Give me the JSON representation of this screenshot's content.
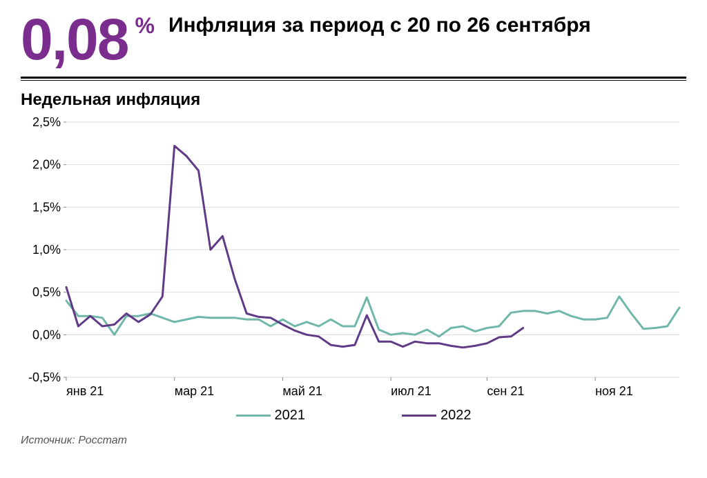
{
  "header": {
    "value": "0,08",
    "unit": "%",
    "subtitle": "Инфляция за период с 20 по 26 сентября",
    "value_color": "#7b2d8e"
  },
  "chart": {
    "title": "Недельная инфляция",
    "type": "line",
    "background_color": "#ffffff",
    "grid_color": "#d9d9d9",
    "axis_color": "#000000",
    "tick_fontsize": 18,
    "title_fontsize": 24,
    "ylim": [
      -0.5,
      2.5
    ],
    "ytick_step": 0.5,
    "y_ticks": [
      {
        "v": -0.5,
        "label": "-0,5%"
      },
      {
        "v": 0.0,
        "label": "0,0%"
      },
      {
        "v": 0.5,
        "label": "0,5%"
      },
      {
        "v": 1.0,
        "label": "1,0%"
      },
      {
        "v": 1.5,
        "label": "1,5%"
      },
      {
        "v": 2.0,
        "label": "2,0%"
      },
      {
        "v": 2.5,
        "label": "2,5%"
      }
    ],
    "x_ticks": [
      {
        "x": 0,
        "label": "янв 21"
      },
      {
        "x": 9,
        "label": "мар 21"
      },
      {
        "x": 18,
        "label": "май 21"
      },
      {
        "x": 27,
        "label": "июл 21"
      },
      {
        "x": 35,
        "label": "сен 21"
      },
      {
        "x": 44,
        "label": "ноя 21"
      }
    ],
    "x_count": 52,
    "series": [
      {
        "name": "2021",
        "color": "#6fb7a8",
        "width": 3,
        "data": [
          0.4,
          0.22,
          0.22,
          0.2,
          0.0,
          0.22,
          0.22,
          0.25,
          0.2,
          0.15,
          0.18,
          0.21,
          0.2,
          0.2,
          0.2,
          0.18,
          0.18,
          0.1,
          0.18,
          0.1,
          0.15,
          0.1,
          0.18,
          0.1,
          0.1,
          0.44,
          0.06,
          0.0,
          0.02,
          0.0,
          0.06,
          -0.02,
          0.08,
          0.1,
          0.04,
          0.08,
          0.1,
          0.26,
          0.28,
          0.28,
          0.25,
          0.28,
          0.22,
          0.18,
          0.18,
          0.2,
          0.45,
          0.25,
          0.07,
          0.08,
          0.1,
          0.32
        ]
      },
      {
        "name": "2022",
        "color": "#5f3b87",
        "width": 3,
        "data": [
          0.56,
          0.1,
          0.22,
          0.1,
          0.12,
          0.25,
          0.15,
          0.24,
          0.45,
          2.22,
          2.1,
          1.93,
          1.0,
          1.16,
          0.66,
          0.25,
          0.21,
          0.2,
          0.12,
          0.05,
          0.0,
          -0.02,
          -0.12,
          -0.14,
          -0.12,
          0.23,
          -0.08,
          -0.08,
          -0.14,
          -0.08,
          -0.1,
          -0.1,
          -0.13,
          -0.15,
          -0.13,
          -0.1,
          -0.03,
          -0.02,
          0.08
        ]
      }
    ]
  },
  "legend": {
    "items": [
      {
        "label": "2021",
        "color": "#6fb7a8"
      },
      {
        "label": "2022",
        "color": "#5f3b87"
      }
    ]
  },
  "source": "Источник: Росстат"
}
